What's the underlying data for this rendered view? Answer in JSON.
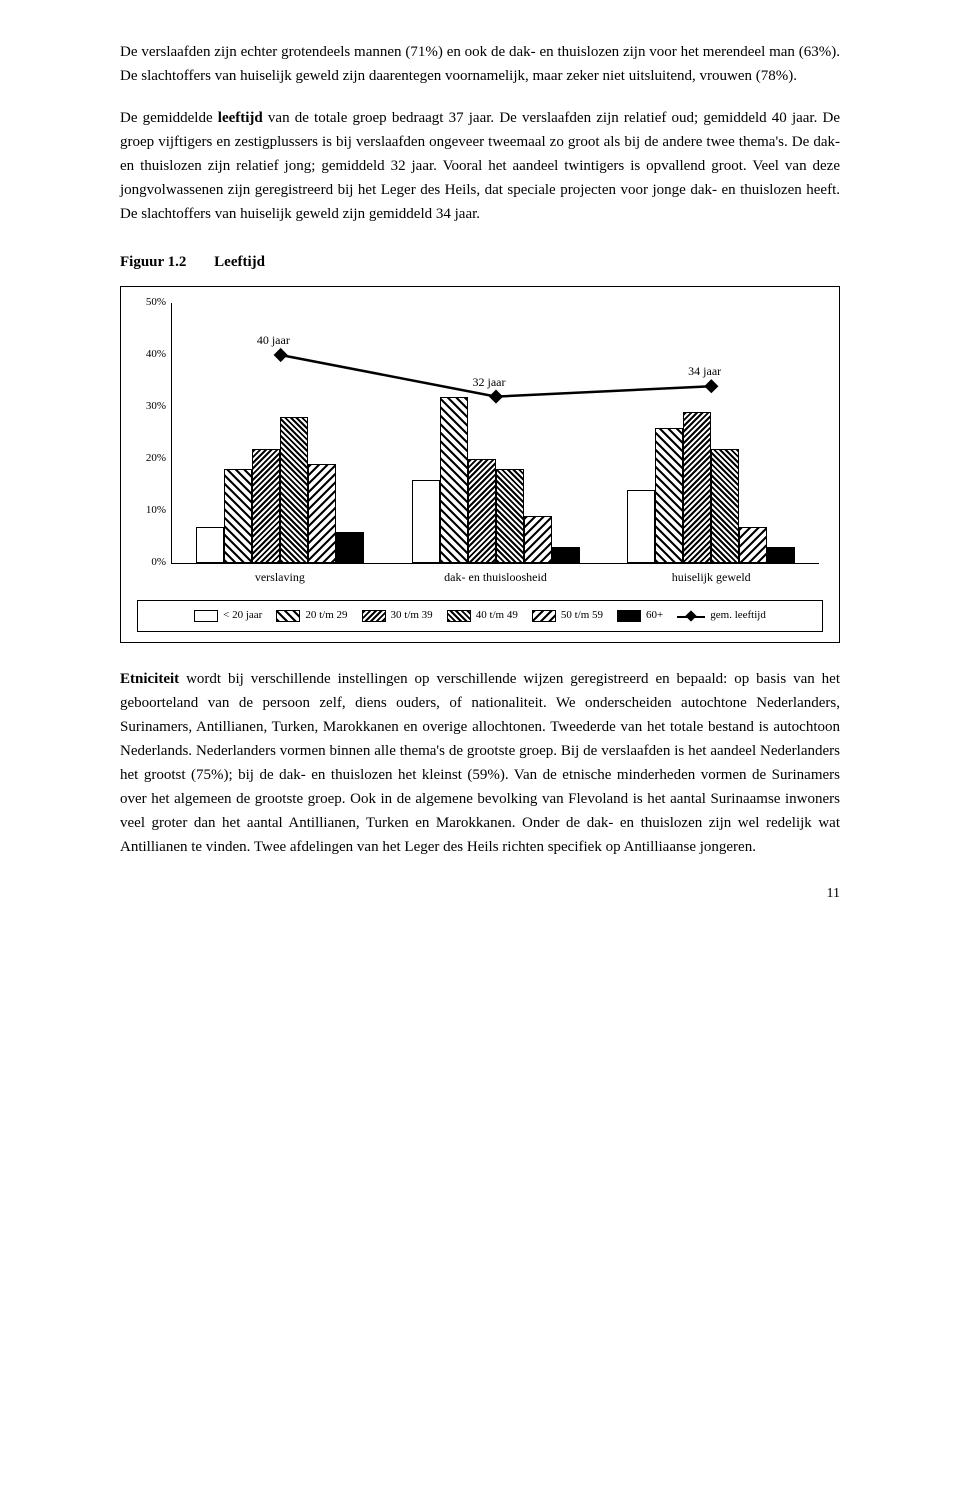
{
  "paragraphs": {
    "p1": "De verslaafden zijn echter grotendeels mannen (71%) en ook de dak- en thuislozen zijn voor het merendeel man (63%). De slachtoffers van huiselijk geweld zijn daarentegen voornamelijk, maar zeker niet uitsluitend, vrouwen (78%).",
    "p2_a": "De gemiddelde ",
    "p2_bold": "leeftijd",
    "p2_b": " van de totale groep bedraagt 37 jaar. De verslaafden zijn relatief oud; gemiddeld 40 jaar. De groep vijftigers en zestigplussers is bij verslaafden ongeveer tweemaal zo groot als bij de andere twee thema's. De dak- en thuislozen zijn relatief jong; gemiddeld 32 jaar. Vooral het aandeel twintigers is opvallend groot. Veel van deze jongvolwassenen zijn geregistreerd bij het Leger des Heils, dat speciale projecten voor jonge dak- en thuislozen heeft. De slachtoffers van huiselijk geweld zijn gemiddeld 34 jaar.",
    "p3_bold": "Etniciteit",
    "p3_b": " wordt bij verschillende instellingen op verschillende wijzen geregistreerd en bepaald: op basis van het geboorteland van de persoon zelf, diens ouders, of nationaliteit. We onderscheiden autochtone Nederlanders, Surinamers, Antillianen, Turken, Marokkanen en overige allochtonen. Tweederde van het totale bestand is autochtoon Nederlands. Nederlanders vormen binnen alle thema's de grootste groep. Bij de verslaafden is het aandeel Nederlanders het grootst (75%); bij de dak- en thuislozen het kleinst (59%). Van de etnische minderheden vormen de Surinamers over het algemeen de grootste groep. Ook in de algemene bevolking van Flevoland is het aantal Surinaamse inwoners veel groter dan het aantal Antillianen, Turken en Marokkanen. Onder de dak- en thuislozen zijn wel redelijk wat Antillianen te vinden. Twee afdelingen van het Leger des Heils richten specifiek op Antilliaanse jongeren."
  },
  "figure": {
    "number": "Figuur 1.2",
    "title": "Leeftijd"
  },
  "chart": {
    "ymax": 50,
    "ytick_step": 10,
    "ytick_suffix": "%",
    "groups": [
      "verslaving",
      "dak- en thuisloosheid",
      "huiselijk geweld"
    ],
    "series": [
      "< 20 jaar",
      "20 t/m 29",
      "30 t/m 39",
      "40 t/m 49",
      "50 t/m 59",
      "60+"
    ],
    "series_pattern": [
      "p-white",
      "p-diag1",
      "p-diag2",
      "p-diag3",
      "p-diag4",
      "p-black"
    ],
    "values": [
      [
        7,
        18,
        22,
        28,
        19,
        6
      ],
      [
        16,
        32,
        20,
        18,
        9,
        3
      ],
      [
        14,
        26,
        29,
        22,
        7,
        3
      ]
    ],
    "avg_values_pct": [
      40,
      32,
      34
    ],
    "avg_labels": [
      "40 jaar",
      "32 jaar",
      "34 jaar"
    ],
    "avg_legend": "gem. leeftijd"
  },
  "page_number": "11"
}
